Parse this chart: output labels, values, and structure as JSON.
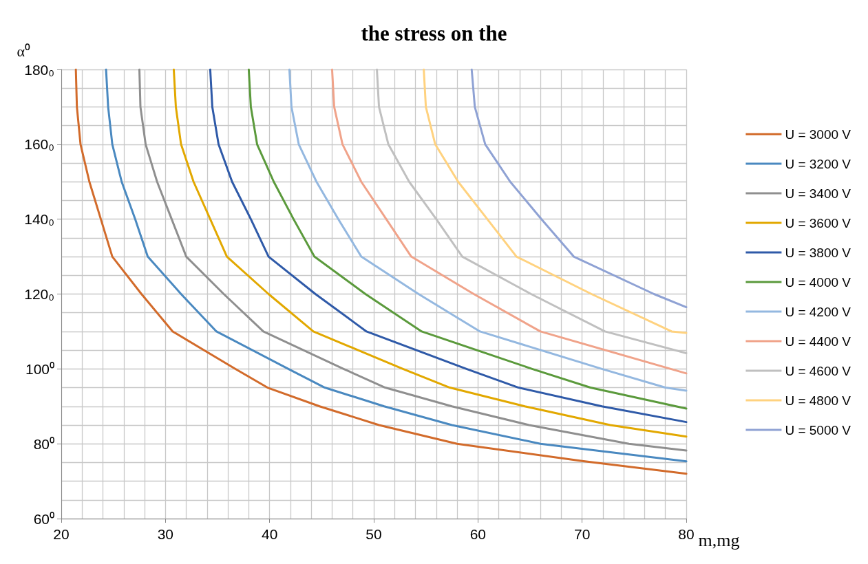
{
  "chart_data": {
    "type": "line",
    "title": "the stress on the",
    "xlabel": "m,mg",
    "ylabel": "α⁰",
    "xlim": [
      20,
      80
    ],
    "xticks": [
      20,
      30,
      40,
      50,
      60,
      70,
      80
    ],
    "ylim": [
      60,
      180
    ],
    "yticks": [
      {
        "value": 60,
        "label": "60⁰"
      },
      {
        "value": 80,
        "label": "80⁰"
      },
      {
        "value": 100,
        "label": "100⁰"
      },
      {
        "value": 120,
        "label": "120₀"
      },
      {
        "value": 140,
        "label": "140₀"
      },
      {
        "value": 160,
        "label": "160₀"
      },
      {
        "value": 180,
        "label": "180₀"
      }
    ],
    "grid": true,
    "legend": "right",
    "marker": "none",
    "line_style": "solid",
    "series": [
      {
        "name": "U = 3000 V",
        "color": "#d26b2b",
        "x": [
          21.4,
          21.5,
          21.85,
          22.7,
          23.8,
          24.9,
          27.7,
          30.7,
          36.7,
          39.8,
          44.8,
          50.5,
          58.0,
          70.0,
          80.0
        ],
        "values": [
          180,
          170,
          160,
          150,
          140,
          130,
          120,
          110,
          100,
          95,
          90,
          85,
          80,
          75.4,
          72.0
        ]
      },
      {
        "name": "U = 3200 V",
        "color": "#4a89c0",
        "x": [
          24.3,
          24.5,
          24.9,
          25.8,
          27.1,
          28.3,
          31.5,
          34.9,
          41.8,
          45.3,
          51.0,
          57.5,
          66.0,
          80.0
        ],
        "values": [
          180,
          170,
          160,
          150,
          140,
          130,
          120,
          110,
          100,
          95,
          90,
          85,
          80,
          75.3
        ]
      },
      {
        "name": "U = 3400 V",
        "color": "#8f8f8f",
        "x": [
          27.5,
          27.6,
          28.1,
          29.2,
          30.6,
          32.0,
          35.6,
          39.4,
          47.1,
          51.1,
          57.5,
          64.9,
          74.5,
          80.0
        ],
        "values": [
          180,
          170,
          160,
          150,
          140,
          130,
          120,
          110,
          100,
          95,
          90,
          85,
          80,
          78.2
        ]
      },
      {
        "name": "U = 3600 V",
        "color": "#e2a800",
        "x": [
          30.8,
          31.0,
          31.5,
          32.7,
          34.3,
          35.9,
          39.9,
          44.2,
          52.8,
          57.3,
          64.5,
          72.7,
          80.0
        ],
        "values": [
          180,
          170,
          160,
          150,
          140,
          130,
          120,
          110,
          100,
          95,
          90,
          85,
          81.9
        ]
      },
      {
        "name": "U = 3800 V",
        "color": "#2f5aa8",
        "x": [
          34.3,
          34.5,
          35.1,
          36.4,
          38.2,
          39.9,
          44.4,
          49.3,
          58.9,
          63.9,
          71.9,
          80.0
        ],
        "values": [
          180,
          170,
          160,
          150,
          140,
          130,
          120,
          110,
          100,
          95,
          90,
          85.8
        ]
      },
      {
        "name": "U = 4000 V",
        "color": "#5b9a3c",
        "x": [
          38.0,
          38.2,
          38.8,
          40.4,
          42.3,
          44.3,
          49.2,
          54.6,
          65.2,
          70.8,
          80.0
        ],
        "values": [
          180,
          170,
          160,
          150,
          140,
          130,
          120,
          110,
          100,
          95,
          89.4
        ]
      },
      {
        "name": "U = 4200 V",
        "color": "#94b8e0",
        "x": [
          41.9,
          42.1,
          42.8,
          44.5,
          46.6,
          48.8,
          54.3,
          60.2,
          71.9,
          78.0,
          80.0
        ],
        "values": [
          180,
          170,
          160,
          150,
          140,
          130,
          120,
          110,
          100,
          95,
          94.2
        ]
      },
      {
        "name": "U = 4400 V",
        "color": "#f0a38a",
        "x": [
          46.0,
          46.2,
          47.0,
          48.8,
          51.2,
          53.6,
          59.6,
          66.0,
          80.0
        ],
        "values": [
          180,
          170,
          160,
          150,
          140,
          130,
          120,
          110,
          98.8
        ]
      },
      {
        "name": "U = 4600 V",
        "color": "#c0c0c0",
        "x": [
          50.3,
          50.5,
          51.4,
          53.4,
          56.0,
          58.5,
          65.1,
          72.2,
          80.0
        ],
        "values": [
          180,
          170,
          160,
          150,
          140,
          130,
          120,
          110,
          104.2
        ]
      },
      {
        "name": "U = 4800 V",
        "color": "#ffd27f",
        "x": [
          54.8,
          55.0,
          55.9,
          58.1,
          60.9,
          63.7,
          70.9,
          78.6,
          80.0
        ],
        "values": [
          180,
          170,
          160,
          150,
          140,
          130,
          120,
          110,
          109.6
        ]
      },
      {
        "name": "U = 5000 V",
        "color": "#8fa2d4",
        "x": [
          59.4,
          59.7,
          60.7,
          63.1,
          66.1,
          69.2,
          76.9,
          80.0
        ],
        "values": [
          180,
          170,
          160,
          150,
          140,
          130,
          120,
          116.5
        ]
      }
    ]
  }
}
